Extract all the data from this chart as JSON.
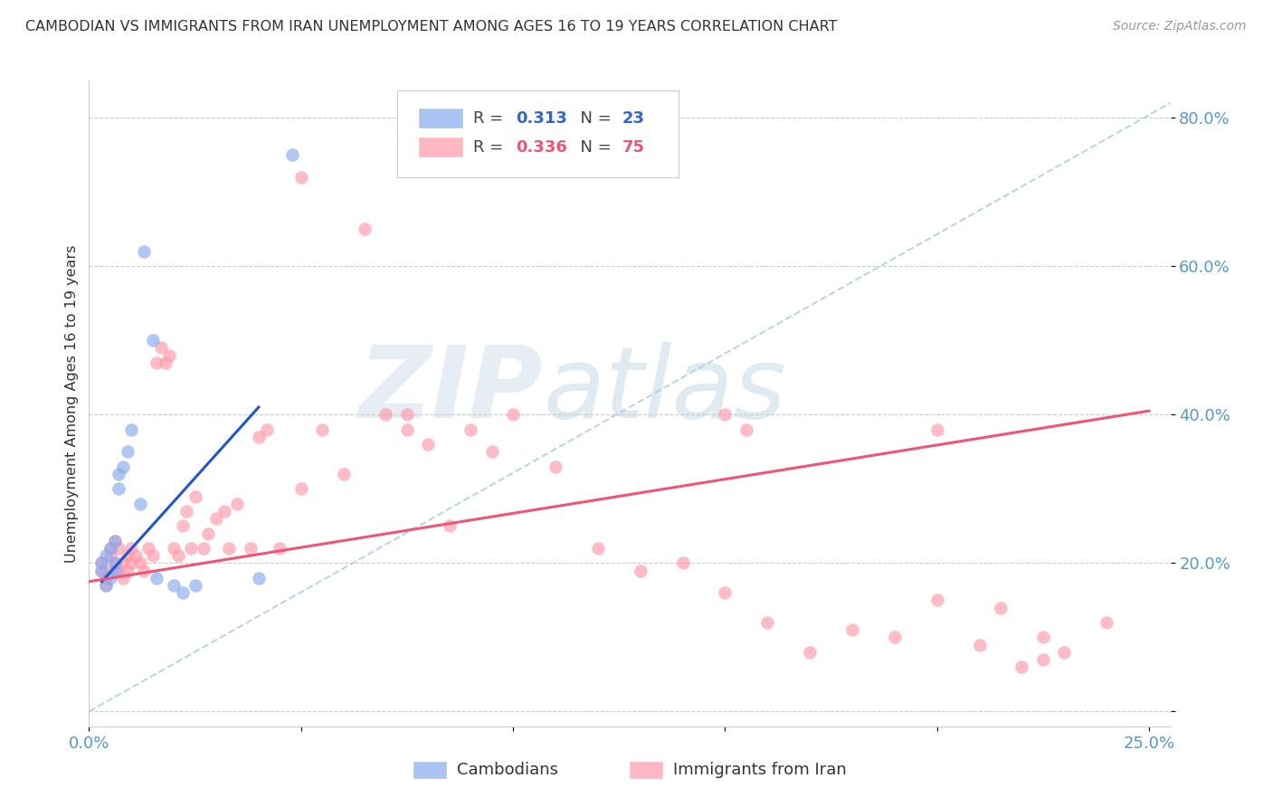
{
  "title": "CAMBODIAN VS IMMIGRANTS FROM IRAN UNEMPLOYMENT AMONG AGES 16 TO 19 YEARS CORRELATION CHART",
  "source": "Source: ZipAtlas.com",
  "ylabel": "Unemployment Among Ages 16 to 19 years",
  "cambodian_color": "#88AAEE",
  "iran_color": "#FF99AA",
  "cambodian_trend_color": "#2255CC",
  "iran_trend_color": "#EE5577",
  "ref_line_color": "#AACCDD",
  "cambodian_R": 0.313,
  "cambodian_N": 23,
  "iran_R": 0.336,
  "iran_N": 75,
  "watermark_zip": "ZIP",
  "watermark_atlas": "atlas",
  "xlim": [
    0.0,
    0.255
  ],
  "ylim": [
    -0.02,
    0.85
  ],
  "ytick_vals": [
    0.0,
    0.2,
    0.4,
    0.6,
    0.8
  ],
  "ytick_labels": [
    "",
    "20.0%",
    "40.0%",
    "60.0%",
    "80.0%"
  ],
  "xtick_vals": [
    0.0,
    0.05,
    0.1,
    0.15,
    0.2,
    0.25
  ],
  "xtick_labels": [
    "0.0%",
    "",
    "",
    "",
    "",
    "25.0%"
  ],
  "cambodian_x": [
    0.003,
    0.003,
    0.004,
    0.004,
    0.005,
    0.005,
    0.006,
    0.006,
    0.006,
    0.007,
    0.007,
    0.008,
    0.009,
    0.01,
    0.012,
    0.013,
    0.015,
    0.016,
    0.02,
    0.022,
    0.025,
    0.04,
    0.048
  ],
  "cambodian_y": [
    0.19,
    0.2,
    0.17,
    0.21,
    0.18,
    0.22,
    0.19,
    0.2,
    0.23,
    0.3,
    0.32,
    0.33,
    0.35,
    0.38,
    0.28,
    0.62,
    0.5,
    0.18,
    0.17,
    0.16,
    0.17,
    0.18,
    0.75
  ],
  "iran_x": [
    0.003,
    0.003,
    0.004,
    0.004,
    0.005,
    0.005,
    0.005,
    0.006,
    0.006,
    0.007,
    0.007,
    0.008,
    0.008,
    0.009,
    0.009,
    0.01,
    0.01,
    0.011,
    0.012,
    0.013,
    0.014,
    0.015,
    0.016,
    0.017,
    0.018,
    0.019,
    0.02,
    0.021,
    0.022,
    0.023,
    0.024,
    0.025,
    0.027,
    0.028,
    0.03,
    0.032,
    0.033,
    0.035,
    0.038,
    0.04,
    0.042,
    0.045,
    0.05,
    0.055,
    0.06,
    0.07,
    0.075,
    0.08,
    0.085,
    0.09,
    0.095,
    0.1,
    0.11,
    0.12,
    0.13,
    0.14,
    0.15,
    0.155,
    0.16,
    0.17,
    0.18,
    0.19,
    0.2,
    0.21,
    0.22,
    0.225,
    0.05,
    0.065,
    0.075,
    0.15,
    0.2,
    0.215,
    0.225,
    0.23,
    0.24
  ],
  "iran_y": [
    0.19,
    0.2,
    0.18,
    0.17,
    0.19,
    0.21,
    0.22,
    0.2,
    0.23,
    0.19,
    0.22,
    0.18,
    0.2,
    0.19,
    0.21,
    0.2,
    0.22,
    0.21,
    0.2,
    0.19,
    0.22,
    0.21,
    0.47,
    0.49,
    0.47,
    0.48,
    0.22,
    0.21,
    0.25,
    0.27,
    0.22,
    0.29,
    0.22,
    0.24,
    0.26,
    0.27,
    0.22,
    0.28,
    0.22,
    0.37,
    0.38,
    0.22,
    0.3,
    0.38,
    0.32,
    0.4,
    0.38,
    0.36,
    0.25,
    0.38,
    0.35,
    0.4,
    0.33,
    0.22,
    0.19,
    0.2,
    0.16,
    0.38,
    0.12,
    0.08,
    0.11,
    0.1,
    0.15,
    0.09,
    0.06,
    0.07,
    0.72,
    0.65,
    0.4,
    0.4,
    0.38,
    0.14,
    0.1,
    0.08,
    0.12
  ],
  "iran_trend_x0": 0.0,
  "iran_trend_y0": 0.175,
  "iran_trend_x1": 0.25,
  "iran_trend_y1": 0.405,
  "cambodian_trend_x0": 0.003,
  "cambodian_trend_y0": 0.175,
  "cambodian_trend_x1": 0.04,
  "cambodian_trend_y1": 0.41,
  "ref_line_x0": 0.0,
  "ref_line_y0": 0.0,
  "ref_line_x1": 0.255,
  "ref_line_y1": 0.82
}
